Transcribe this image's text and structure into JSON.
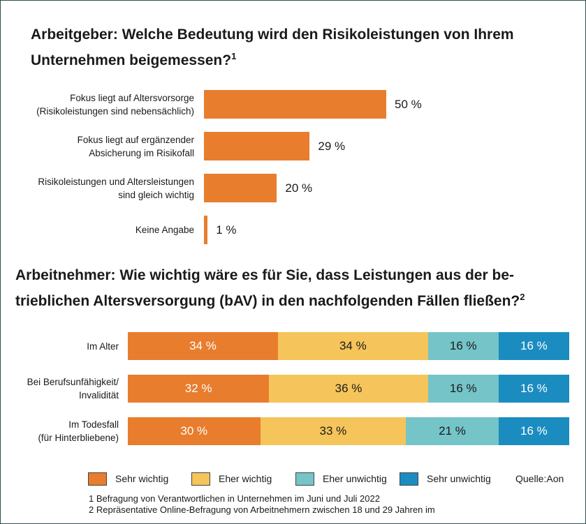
{
  "chart_data": [
    {
      "type": "bar",
      "orientation": "horizontal",
      "title": "Arbeitgeber: Welche Bedeutung wird den Risikoleistungen von Ihrem Unternehmen beigemessen?",
      "title_footnote_mark": "1",
      "categories": [
        "Fokus liegt auf Altersvorsorge\n(Risikoleistungen sind nebensächlich)",
        "Fokus liegt auf ergänzender\nAbsicherung im Risikofall",
        "Risikoleistungen und Altersleistungen\nsind gleich wichtig",
        "Keine Angabe"
      ],
      "values": [
        50,
        29,
        20,
        1
      ],
      "value_labels": [
        "50 %",
        "29 %",
        "20 %",
        "1 %"
      ],
      "color": "#e87d2e"
    },
    {
      "type": "bar",
      "orientation": "horizontal",
      "stacked": true,
      "title": "Arbeitnehmer: Wie wichtig wäre es für Sie, dass Leistungen aus der betrieblichen Altersversorgung (bAV) in den nachfolgenden Fällen fließen?",
      "title_line1": "Arbeitnehmer: Wie wichtig wäre es für Sie, dass Leistungen aus der be-",
      "title_line2": "trieblichen Altersversorgung (bAV) in den nachfolgenden Fällen fließen?",
      "title_footnote_mark": "2",
      "categories": [
        "Im Alter",
        "Bei Berufsunfähigkeit/\nInvalidität",
        "Im Todesfall\n(für Hinterbliebene)"
      ],
      "series": [
        {
          "name": "Sehr wichtig",
          "color": "#e87d2e",
          "text_color": "#ffffff",
          "values": [
            34,
            32,
            30
          ],
          "labels": [
            "34 %",
            "32 %",
            "30 %"
          ]
        },
        {
          "name": "Eher wichtig",
          "color": "#f5c45a",
          "text_color": "#1a1a1a",
          "values": [
            34,
            36,
            33
          ],
          "labels": [
            "34 %",
            "36 %",
            "33 %"
          ]
        },
        {
          "name": "Eher unwichtig",
          "color": "#74c4c8",
          "text_color": "#1a1a1a",
          "values": [
            16,
            16,
            21
          ],
          "labels": [
            "16 %",
            "16 %",
            "21 %"
          ]
        },
        {
          "name": "Sehr unwichtig",
          "color": "#1b8cc0",
          "text_color": "#ffffff",
          "values": [
            16,
            16,
            16
          ],
          "labels": [
            "16 %",
            "16 %",
            "16 %"
          ]
        }
      ]
    }
  ],
  "title1_line1": "Arbeitgeber: Welche Bedeutung wird den Risikoleistungen von Ihrem",
  "title1_line2": "Unternehmen beigemessen?",
  "source": "Quelle:Aon",
  "footnotes": [
    "1 Befragung von Verantwortlichen in Unternehmen im Juni und Juli 2022",
    "2 Repräsentative Online-Befragung von Arbeitnehmern zwischen 18 und 29 Jahren im"
  ]
}
